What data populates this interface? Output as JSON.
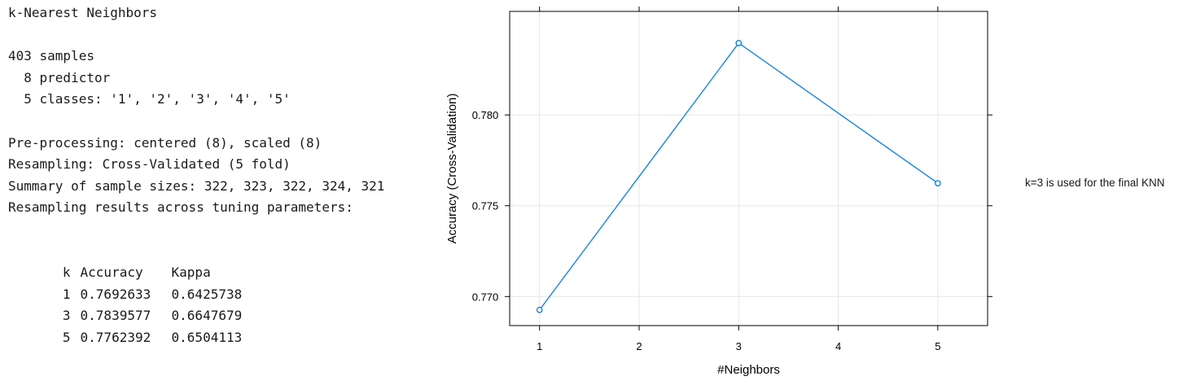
{
  "console": {
    "title": "k-Nearest Neighbors",
    "samples": "403 samples",
    "predictors": "  8 predictor",
    "classes": "  5 classes: '1', '2', '3', '4', '5'",
    "preprocessing": "Pre-processing: centered (8), scaled (8)",
    "resampling": "Resampling: Cross-Validated (5 fold)",
    "sample_sizes": "Summary of sample sizes: 322, 323, 322, 324, 321",
    "results_heading": "Resampling results across tuning parameters:",
    "table": {
      "headers": [
        "k",
        "Accuracy",
        "Kappa"
      ],
      "rows": [
        [
          "1",
          "0.7692633",
          "0.6425738"
        ],
        [
          "3",
          "0.7839577",
          "0.6647679"
        ],
        [
          "5",
          "0.7762392",
          "0.6504113"
        ]
      ]
    }
  },
  "note": "k=3 is used for the final KNN",
  "chart_data": {
    "type": "line",
    "xlabel": "#Neighbors",
    "ylabel": "Accuracy (Cross-Validation)",
    "x": [
      1,
      3,
      5
    ],
    "y": [
      0.7692633,
      0.7839577,
      0.7762392
    ],
    "xlim": [
      0.7,
      5.5
    ],
    "ylim": [
      0.7684,
      0.7857
    ],
    "xticks": [
      1,
      2,
      3,
      4,
      5
    ],
    "yticks": [
      0.77,
      0.775,
      0.78
    ],
    "ytick_labels": [
      "0.770",
      "0.775",
      "0.780"
    ],
    "grid": true,
    "line_color": "#0080ff",
    "grid_color": "#e6e6e6",
    "marker": "open-circle"
  }
}
